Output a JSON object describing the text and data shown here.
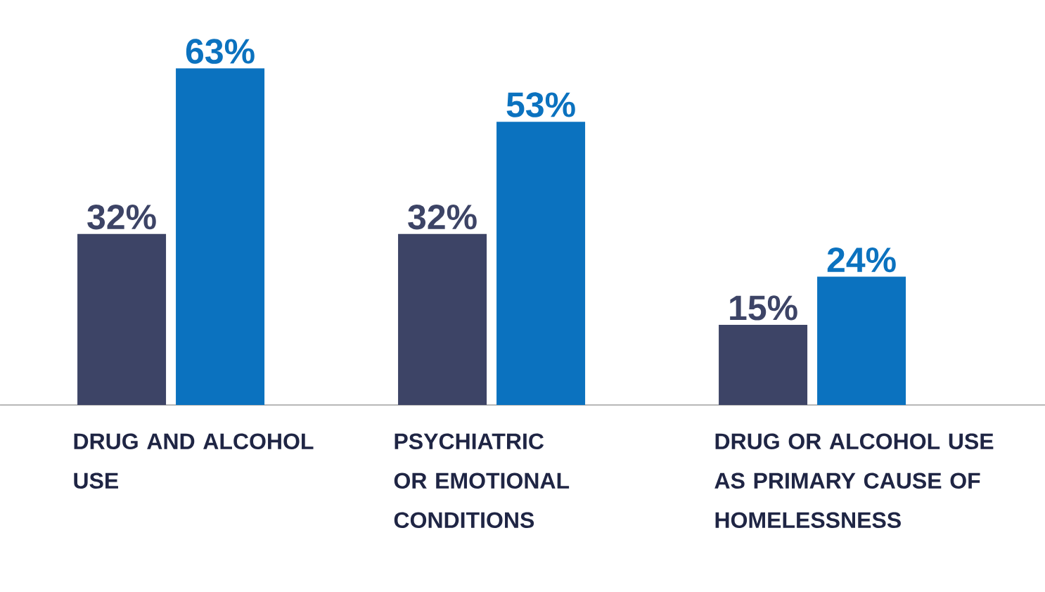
{
  "chart_data": {
    "type": "bar",
    "categories": [
      "DRUG AND ALCOHOL USE",
      "PSYCHIATRIC OR EMOTIONAL CONDITIONS",
      "DRUG OR ALCOHOL USE AS PRIMARY CAUSE OF HOMELESSNESS"
    ],
    "series": [
      {
        "color": "#3d4466",
        "values": [
          32,
          32,
          15
        ],
        "value_labels": [
          "32%",
          "32%",
          "15%"
        ]
      },
      {
        "color": "#0b72bf",
        "values": [
          63,
          53,
          24
        ],
        "value_labels": [
          "63%",
          "53%",
          "24%"
        ]
      }
    ]
  }
}
